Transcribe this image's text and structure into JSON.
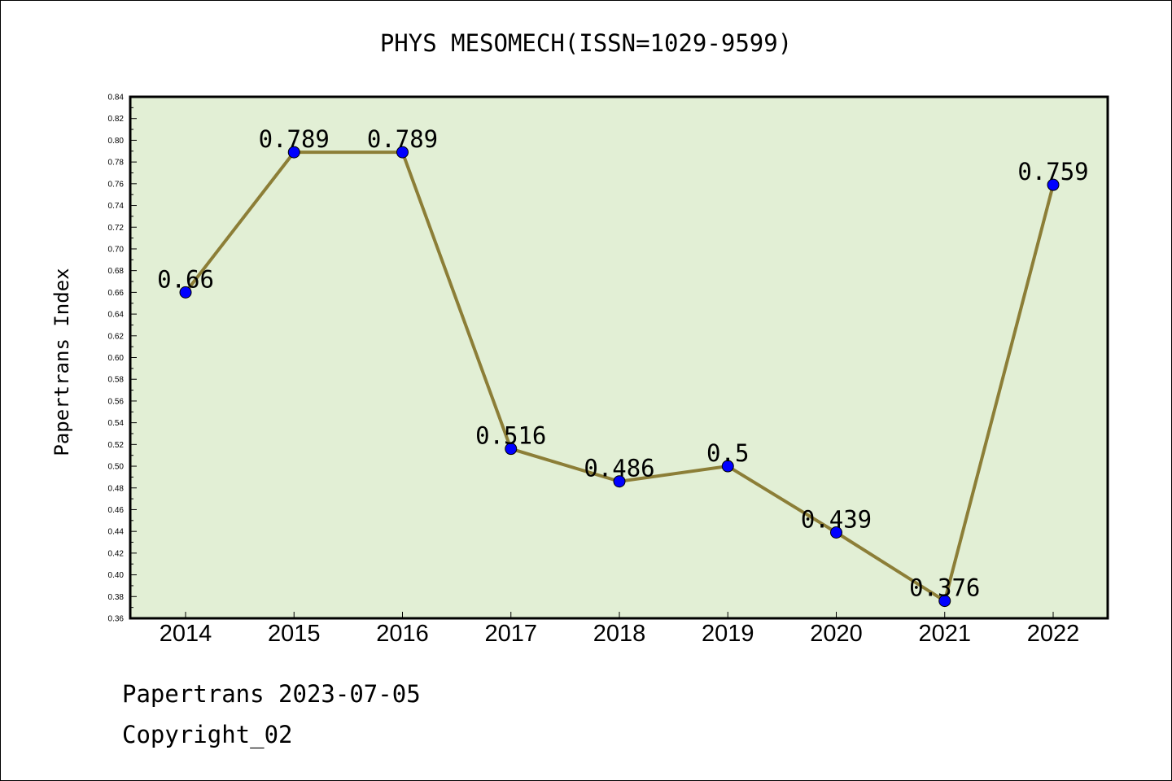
{
  "chart_data": {
    "type": "line",
    "title": "PHYS MESOMECH(ISSN=1029-9599)",
    "ylabel": "Papertrans Index",
    "xlabel": "",
    "categories": [
      "2014",
      "2015",
      "2016",
      "2017",
      "2018",
      "2019",
      "2020",
      "2021",
      "2022"
    ],
    "series": [
      {
        "values": [
          0.66,
          0.789,
          0.789,
          0.516,
          0.486,
          0.5,
          0.439,
          0.376,
          0.759
        ]
      }
    ],
    "data_labels": [
      "0.66",
      "0.789",
      "0.789",
      "0.516",
      "0.486",
      "0.5",
      "0.439",
      "0.376",
      "0.759"
    ],
    "ylim": [
      0.36,
      0.84
    ],
    "ytick_step": 0.02,
    "ytick_labels": [
      "0.36",
      "0.38",
      "0.40",
      "0.42",
      "0.44",
      "0.46",
      "0.48",
      "0.50",
      "0.52",
      "0.54",
      "0.56",
      "0.58",
      "0.60",
      "0.62",
      "0.64",
      "0.66",
      "0.68",
      "0.70",
      "0.72",
      "0.74",
      "0.76",
      "0.78",
      "0.80",
      "0.82",
      "0.84"
    ],
    "grid": false,
    "colors": {
      "plot_background": "#e2efd5",
      "line": "#8c7e37",
      "marker": "#0000ff"
    }
  },
  "footer": {
    "date_line": "Papertrans 2023-07-05",
    "copyright": "Copyright_02"
  }
}
